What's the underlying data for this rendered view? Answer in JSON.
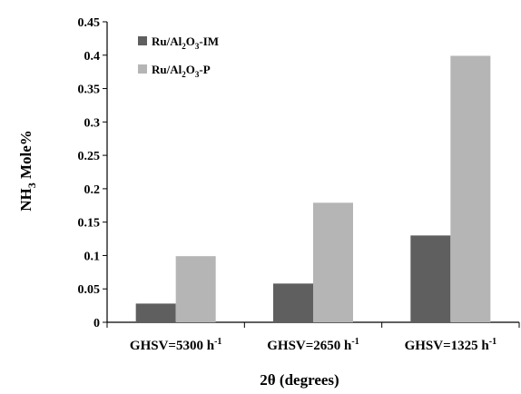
{
  "chart_data": {
    "type": "bar",
    "title": "",
    "xlabel": "2θ (degrees)",
    "ylabel": "NH3 Mole%",
    "ylabel_parts": [
      "NH",
      "3",
      " Mole%"
    ],
    "categories": [
      {
        "main": "GHSV=5300 h",
        "sup": "-1"
      },
      {
        "main": "GHSV=2650 h",
        "sup": "-1"
      },
      {
        "main": "GHSV=1325 h",
        "sup": "-1"
      }
    ],
    "series": [
      {
        "name": "Ru/Al2O3-IM",
        "name_parts": [
          "Ru/Al",
          "2",
          "O",
          "3",
          "-IM"
        ],
        "color": "#5f5f5f",
        "values": [
          0.028,
          0.058,
          0.13
        ]
      },
      {
        "name": "Ru/Al2O3-P",
        "name_parts": [
          "Ru/Al",
          "2",
          "O",
          "3",
          "-P"
        ],
        "color": "#b5b5b5",
        "values": [
          0.099,
          0.179,
          0.399
        ]
      }
    ],
    "ylim": [
      0,
      0.45
    ],
    "yticks": [
      "0",
      "0.05",
      "0.1",
      "0.15",
      "0.2",
      "0.25",
      "0.3",
      "0.35",
      "0.4",
      "0.45"
    ],
    "grid": false,
    "legend_position": "top-left"
  }
}
